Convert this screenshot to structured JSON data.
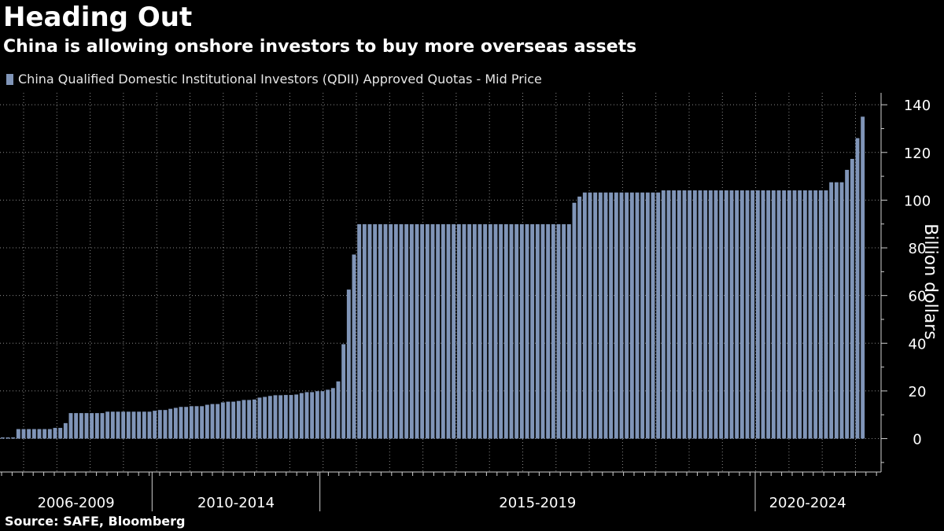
{
  "header": {
    "title": "Heading Out",
    "subtitle": "China is allowing onshore investors to buy more overseas assets"
  },
  "legend": {
    "label": "China Qualified Domestic Institutional Investors (QDII) Approved Quotas - Mid Price"
  },
  "footer": {
    "source": "Source: SAFE, Bloomberg"
  },
  "colors": {
    "background": "#000000",
    "bar": "#8095b8",
    "grid": "#8a8a8a",
    "text": "#ffffff"
  },
  "chart_data": {
    "type": "bar",
    "ylabel": "Billion dollars",
    "ylim": [
      -14,
      145
    ],
    "y_ticks": [
      0,
      20,
      40,
      60,
      80,
      100,
      120,
      140
    ],
    "y_axis_side": "right",
    "grid": true,
    "legend_position": "top-left",
    "period_groups": [
      {
        "label": "2006-2009",
        "count": 29
      },
      {
        "label": "2010-2014",
        "count": 32
      },
      {
        "label": "2015-2019",
        "count": 83
      },
      {
        "label": "2020-2024",
        "count": 20
      }
    ],
    "series": [
      {
        "name": "China Qualified Domestic Institutional Investors (QDII) Approved Quotas - Mid Price",
        "values": [
          0.5,
          0.5,
          0.5,
          4,
          4,
          4,
          4,
          4,
          4,
          4,
          4.5,
          4.5,
          6.5,
          10.7,
          10.7,
          10.7,
          10.7,
          10.7,
          10.7,
          10.7,
          11.3,
          11.3,
          11.3,
          11.3,
          11.3,
          11.3,
          11.3,
          11.3,
          11.3,
          11.7,
          12,
          12,
          12.5,
          12.9,
          13.3,
          13.3,
          13.6,
          13.6,
          13.6,
          14.2,
          14.5,
          14.5,
          15.2,
          15.5,
          15.5,
          15.8,
          16.2,
          16.2,
          16.4,
          17.2,
          17.5,
          17.9,
          18.2,
          18.2,
          18.3,
          18.3,
          18.5,
          19.1,
          19.5,
          19.5,
          19.9,
          19.9,
          20.5,
          21.2,
          24,
          39.6,
          62.5,
          77.2,
          89.9,
          89.9,
          89.9,
          89.9,
          89.9,
          89.9,
          89.9,
          89.9,
          89.9,
          89.9,
          89.9,
          89.9,
          89.9,
          89.9,
          89.9,
          89.9,
          89.9,
          89.9,
          89.9,
          89.9,
          89.9,
          89.9,
          89.9,
          89.9,
          89.9,
          89.9,
          89.9,
          89.9,
          89.9,
          89.9,
          89.9,
          89.9,
          89.9,
          89.9,
          89.9,
          89.9,
          89.9,
          89.9,
          89.9,
          89.9,
          89.9,
          98.9,
          101.5,
          103.2,
          103.2,
          103.2,
          103.2,
          103.2,
          103.2,
          103.2,
          103.2,
          103.2,
          103.2,
          103.2,
          103.2,
          103.2,
          103.2,
          103.2,
          104.1,
          104.1,
          104.1,
          104.1,
          104.1,
          104.1,
          104.1,
          104.1,
          104.1,
          104.1,
          104.1,
          104.1,
          104.1,
          104.1,
          104.1,
          104.1,
          104.1,
          104.1,
          104.1,
          104.1,
          104.1,
          104.1,
          104.1,
          104.1,
          104.1,
          104.1,
          104.1,
          104.1,
          104.1,
          104.1,
          104.1,
          104.1,
          107.5,
          107.5,
          107.5,
          112.7,
          117.3,
          126,
          135
        ]
      }
    ]
  }
}
